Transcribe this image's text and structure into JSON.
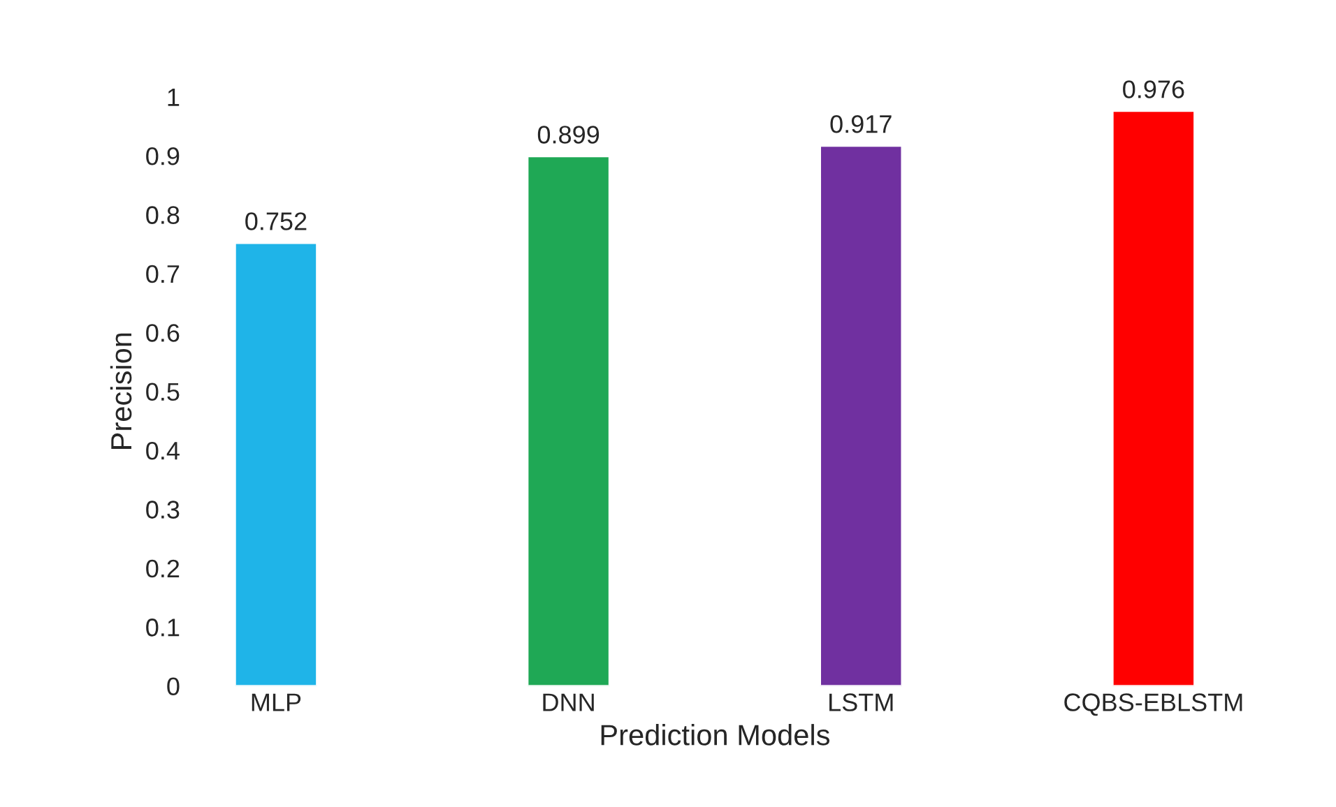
{
  "chart_data": {
    "type": "bar",
    "xlabel": "Prediction Models",
    "ylabel": "Precision",
    "categories": [
      "MLP",
      "DNN",
      "LSTM",
      "CQBS-EBLSTM"
    ],
    "values": [
      0.752,
      0.899,
      0.917,
      0.976
    ],
    "colors": [
      "#1fb4e8",
      "#1fa855",
      "#7030a0",
      "#ff0000"
    ],
    "ylim": [
      0,
      1
    ],
    "yticks": [
      0,
      0.1,
      0.2,
      0.3,
      0.4,
      0.5,
      0.6,
      0.7,
      0.8,
      0.9,
      1
    ],
    "data_labels": true,
    "grid": false,
    "legend": false
  }
}
